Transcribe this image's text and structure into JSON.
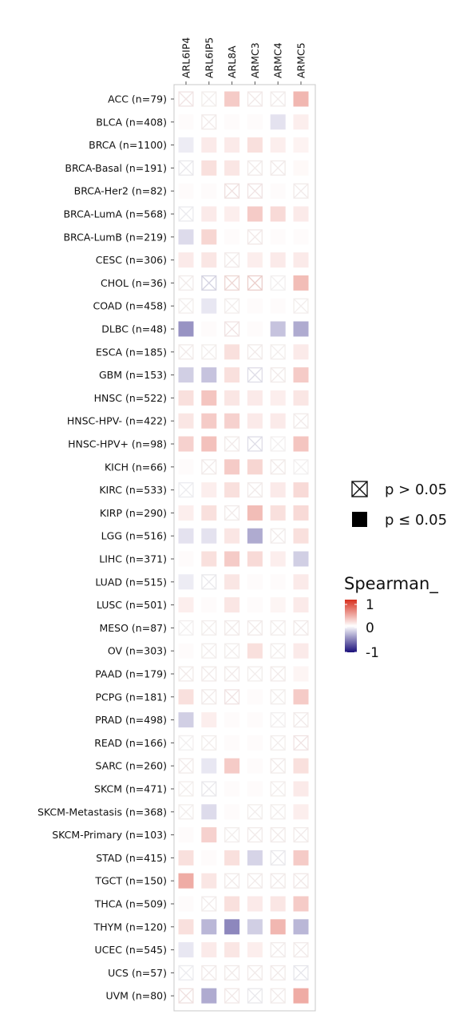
{
  "chart_data": {
    "type": "heatmap",
    "genes": [
      "ARL6IP4",
      "ARL6IP5",
      "ARL8A",
      "ARMC3",
      "ARMC4",
      "ARMC5"
    ],
    "cancers": [
      "ACC (n=79)",
      "BLCA (n=408)",
      "BRCA (n=1100)",
      "BRCA-Basal (n=191)",
      "BRCA-Her2 (n=82)",
      "BRCA-LumA (n=568)",
      "BRCA-LumB (n=219)",
      "CESC (n=306)",
      "CHOL (n=36)",
      "COAD (n=458)",
      "DLBC (n=48)",
      "ESCA (n=185)",
      "GBM (n=153)",
      "HNSC (n=522)",
      "HNSC-HPV- (n=422)",
      "HNSC-HPV+ (n=98)",
      "KICH (n=66)",
      "KIRC (n=533)",
      "KIRP (n=290)",
      "LGG (n=516)",
      "LIHC (n=371)",
      "LUAD (n=515)",
      "LUSC (n=501)",
      "MESO (n=87)",
      "OV (n=303)",
      "PAAD (n=179)",
      "PCPG (n=181)",
      "PRAD (n=498)",
      "READ (n=166)",
      "SARC (n=260)",
      "SKCM (n=471)",
      "SKCM-Metastasis (n=368)",
      "SKCM-Primary (n=103)",
      "STAD (n=415)",
      "TGCT (n=150)",
      "THCA (n=509)",
      "THYM (n=120)",
      "UCEC (n=545)",
      "UCS (n=57)",
      "UVM (n=80)"
    ],
    "rho": [
      [
        0.08,
        0.03,
        0.25,
        0.06,
        0.04,
        0.35
      ],
      [
        0.02,
        0.05,
        0.02,
        0.02,
        -0.12,
        0.08
      ],
      [
        -0.08,
        0.1,
        0.1,
        0.15,
        0.08,
        0.06
      ],
      [
        -0.05,
        0.15,
        0.12,
        0.05,
        0.05,
        0.03
      ],
      [
        0.02,
        0.02,
        0.1,
        0.08,
        0.02,
        0.05
      ],
      [
        -0.04,
        0.1,
        0.08,
        0.25,
        0.18,
        0.1
      ],
      [
        -0.15,
        0.2,
        0.02,
        0.06,
        0.02,
        0.02
      ],
      [
        0.1,
        0.12,
        0.05,
        0.08,
        0.1,
        0.1
      ],
      [
        0.04,
        -0.15,
        0.15,
        0.2,
        0.02,
        0.32
      ],
      [
        0.03,
        -0.1,
        0.03,
        0.02,
        0.02,
        0.03
      ],
      [
        -0.45,
        0.02,
        0.08,
        0.02,
        -0.25,
        -0.35
      ],
      [
        0.05,
        0.03,
        0.15,
        0.05,
        0.03,
        0.1
      ],
      [
        -0.2,
        -0.25,
        0.15,
        -0.1,
        0.05,
        0.25
      ],
      [
        0.15,
        0.28,
        0.12,
        0.1,
        0.08,
        0.12
      ],
      [
        0.12,
        0.25,
        0.22,
        0.1,
        0.1,
        0.05
      ],
      [
        0.22,
        0.3,
        0.05,
        -0.1,
        0.02,
        0.28
      ],
      [
        0.02,
        0.05,
        0.25,
        0.2,
        0.05,
        0.02
      ],
      [
        -0.03,
        0.08,
        0.15,
        0.05,
        0.1,
        0.18
      ],
      [
        0.08,
        0.15,
        0.05,
        0.32,
        0.15,
        0.18
      ],
      [
        -0.12,
        -0.12,
        0.12,
        -0.35,
        0.04,
        0.15
      ],
      [
        0.02,
        0.15,
        0.25,
        0.18,
        0.08,
        -0.2
      ],
      [
        -0.08,
        -0.05,
        0.12,
        0.02,
        0.02,
        0.1
      ],
      [
        0.08,
        0.02,
        0.12,
        0.02,
        0.05,
        0.1
      ],
      [
        0.02,
        0.03,
        0.05,
        0.05,
        0.03,
        0.05
      ],
      [
        0.02,
        0.03,
        0.03,
        0.15,
        0.03,
        0.1
      ],
      [
        0.05,
        0.05,
        0.05,
        0.03,
        0.05,
        0.05
      ],
      [
        0.15,
        0.05,
        0.08,
        0.02,
        0.03,
        0.25
      ],
      [
        -0.2,
        0.08,
        0.02,
        0.02,
        0.02,
        0.05
      ],
      [
        0.02,
        0.03,
        0.02,
        0.02,
        0.03,
        0.08
      ],
      [
        0.05,
        -0.1,
        0.25,
        0.02,
        0.05,
        0.15
      ],
      [
        0.03,
        -0.05,
        0.02,
        0.02,
        0.03,
        0.1
      ],
      [
        0.03,
        -0.15,
        0.02,
        0.03,
        0.03,
        0.08
      ],
      [
        0.02,
        0.22,
        0.03,
        0.05,
        0.05,
        0.05
      ],
      [
        0.15,
        0.02,
        0.15,
        -0.18,
        -0.05,
        0.25
      ],
      [
        0.4,
        0.12,
        0.05,
        0.05,
        0.05,
        0.06
      ],
      [
        0.02,
        0.04,
        0.15,
        0.1,
        0.12,
        0.25
      ],
      [
        0.15,
        -0.3,
        -0.5,
        -0.2,
        0.35,
        -0.3
      ],
      [
        -0.1,
        0.1,
        0.12,
        0.08,
        0.04,
        0.05
      ],
      [
        -0.03,
        0.05,
        0.05,
        0.05,
        0.05,
        -0.06
      ],
      [
        0.1,
        -0.35,
        0.06,
        -0.05,
        0.05,
        0.4
      ]
    ],
    "p_gt_005": [
      [
        1,
        1,
        0,
        1,
        1,
        0
      ],
      [
        0,
        1,
        0,
        0,
        0,
        0
      ],
      [
        0,
        0,
        0,
        0,
        0,
        0
      ],
      [
        1,
        0,
        0,
        1,
        1,
        0
      ],
      [
        0,
        0,
        1,
        1,
        0,
        1
      ],
      [
        1,
        0,
        0,
        0,
        0,
        0
      ],
      [
        0,
        0,
        0,
        1,
        0,
        0
      ],
      [
        0,
        0,
        1,
        0,
        0,
        0
      ],
      [
        1,
        1,
        1,
        1,
        1,
        0
      ],
      [
        1,
        0,
        1,
        0,
        0,
        1
      ],
      [
        0,
        0,
        1,
        0,
        0,
        0
      ],
      [
        1,
        1,
        0,
        1,
        1,
        0
      ],
      [
        0,
        0,
        0,
        1,
        1,
        0
      ],
      [
        0,
        0,
        0,
        0,
        0,
        0
      ],
      [
        0,
        0,
        0,
        0,
        0,
        1
      ],
      [
        0,
        0,
        1,
        1,
        1,
        0
      ],
      [
        0,
        1,
        0,
        0,
        1,
        1
      ],
      [
        1,
        0,
        0,
        1,
        0,
        0
      ],
      [
        0,
        0,
        1,
        0,
        0,
        0
      ],
      [
        0,
        0,
        0,
        0,
        1,
        0
      ],
      [
        0,
        0,
        0,
        0,
        0,
        0
      ],
      [
        0,
        1,
        0,
        0,
        0,
        0
      ],
      [
        0,
        0,
        0,
        0,
        0,
        0
      ],
      [
        1,
        1,
        1,
        1,
        1,
        1
      ],
      [
        0,
        1,
        1,
        0,
        1,
        0
      ],
      [
        1,
        1,
        1,
        1,
        1,
        0
      ],
      [
        0,
        1,
        1,
        0,
        1,
        0
      ],
      [
        0,
        0,
        0,
        0,
        1,
        1
      ],
      [
        1,
        1,
        0,
        0,
        1,
        1
      ],
      [
        1,
        0,
        0,
        0,
        1,
        0
      ],
      [
        1,
        1,
        0,
        0,
        1,
        0
      ],
      [
        1,
        0,
        0,
        1,
        1,
        0
      ],
      [
        0,
        0,
        1,
        1,
        1,
        1
      ],
      [
        0,
        0,
        0,
        0,
        1,
        0
      ],
      [
        0,
        0,
        1,
        1,
        1,
        1
      ],
      [
        0,
        1,
        0,
        0,
        0,
        0
      ],
      [
        0,
        0,
        0,
        0,
        0,
        0
      ],
      [
        0,
        0,
        0,
        0,
        1,
        1
      ],
      [
        1,
        1,
        1,
        1,
        1,
        1
      ],
      [
        1,
        0,
        1,
        1,
        1,
        0
      ]
    ],
    "legend": {
      "shape_items": [
        "p > 0.05",
        "p ≤ 0.05"
      ],
      "color_title": "Spearman_",
      "color_ticks": [
        "1",
        "0",
        "-1"
      ],
      "color_high": "#d7301f",
      "color_mid": "#ffffff",
      "color_low": "#1a0f7a"
    }
  }
}
